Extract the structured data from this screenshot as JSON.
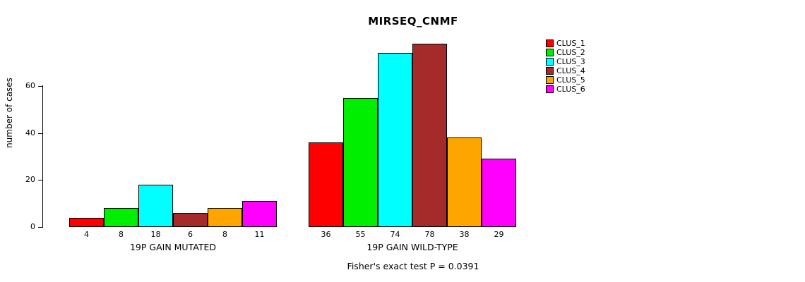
{
  "chart_data": {
    "type": "bar",
    "title": "MIRSEQ_CNMF",
    "ylabel": "number of cases",
    "annotation": "Fisher's exact test P = 0.0391",
    "yticks": [
      0,
      20,
      40,
      60
    ],
    "ylim": [
      0,
      80
    ],
    "grid": false,
    "legend_position": "top-right",
    "series_names": [
      "CLUS_1",
      "CLUS_2",
      "CLUS_3",
      "CLUS_4",
      "CLUS_5",
      "CLUS_6"
    ],
    "colors": [
      "#FF0000",
      "#00EE00",
      "#00FFFF",
      "#A52A2A",
      "#FFA500",
      "#FF00FF"
    ],
    "groups": [
      {
        "label": "19P GAIN MUTATED",
        "values": [
          4,
          8,
          18,
          6,
          8,
          11
        ]
      },
      {
        "label": "19P GAIN WILD-TYPE",
        "values": [
          36,
          55,
          74,
          78,
          38,
          29
        ]
      }
    ]
  }
}
